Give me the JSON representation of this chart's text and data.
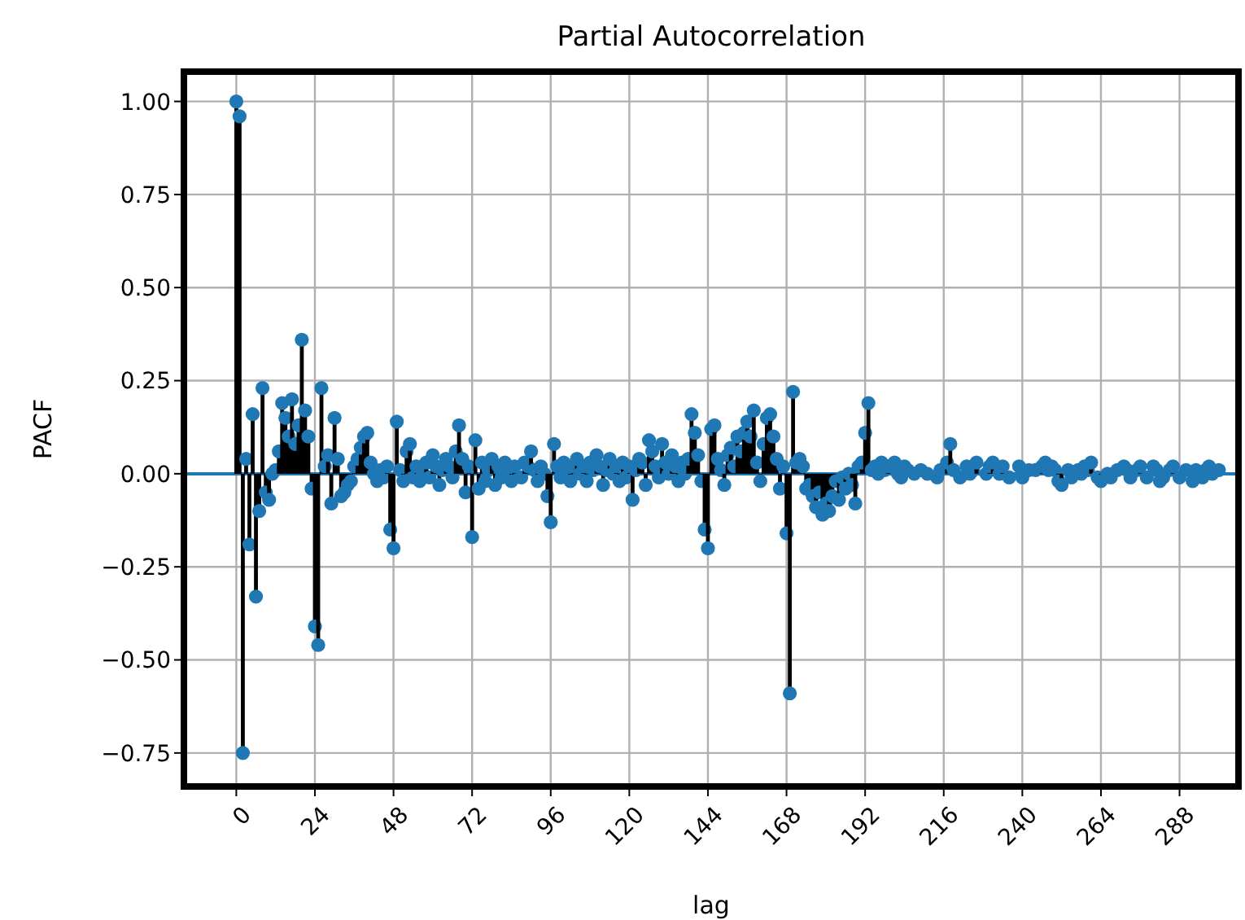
{
  "chart_data": {
    "type": "lollipop",
    "title": "Partial Autocorrelation",
    "xlabel": "lag",
    "ylabel": "PACF",
    "x": [
      0,
      1,
      2,
      3,
      4,
      5,
      6,
      7,
      8,
      9,
      10,
      11,
      12,
      13,
      14,
      15,
      16,
      17,
      18,
      19,
      20,
      21,
      22,
      23,
      24,
      25,
      26,
      27,
      28,
      29,
      30,
      31,
      32,
      33,
      34,
      35,
      36,
      37,
      38,
      39,
      40,
      41,
      42,
      43,
      44,
      45,
      46,
      47,
      48,
      49,
      50,
      51,
      52,
      53,
      54,
      55,
      56,
      57,
      58,
      59,
      60,
      61,
      62,
      63,
      64,
      65,
      66,
      67,
      68,
      69,
      70,
      71,
      72,
      73,
      74,
      75,
      76,
      77,
      78,
      79,
      80,
      81,
      82,
      83,
      84,
      85,
      86,
      87,
      88,
      89,
      90,
      91,
      92,
      93,
      94,
      95,
      96,
      97,
      98,
      99,
      100,
      101,
      102,
      103,
      104,
      105,
      106,
      107,
      108,
      109,
      110,
      111,
      112,
      113,
      114,
      115,
      116,
      117,
      118,
      119,
      120,
      121,
      122,
      123,
      124,
      125,
      126,
      127,
      128,
      129,
      130,
      131,
      132,
      133,
      134,
      135,
      136,
      137,
      138,
      139,
      140,
      141,
      142,
      143,
      144,
      145,
      146,
      147,
      148,
      149,
      150,
      151,
      152,
      153,
      154,
      155,
      156,
      157,
      158,
      159,
      160,
      161,
      162,
      163,
      164,
      165,
      166,
      167,
      168,
      169,
      170,
      171,
      172,
      173,
      174,
      175,
      176,
      177,
      178,
      179,
      180,
      181,
      182,
      183,
      184,
      185,
      186,
      187,
      188,
      189,
      190,
      191,
      192,
      193,
      194,
      195,
      196,
      197,
      198,
      199,
      200,
      201,
      202,
      203,
      204,
      205,
      206,
      207,
      208,
      209,
      210,
      211,
      212,
      213,
      214,
      215,
      216,
      217,
      218,
      219,
      220,
      221,
      222,
      223,
      224,
      225,
      226,
      227,
      228,
      229,
      230,
      231,
      232,
      233,
      234,
      235,
      236,
      237,
      238,
      239,
      240,
      241,
      242,
      243,
      244,
      245,
      246,
      247,
      248,
      249,
      250,
      251,
      252,
      253,
      254,
      255,
      256,
      257,
      258,
      259,
      260,
      261,
      262,
      263,
      264,
      265,
      266,
      267,
      268,
      269,
      270,
      271,
      272,
      273,
      274,
      275,
      276,
      277,
      278,
      279,
      280,
      281,
      282,
      283,
      284,
      285,
      286,
      287,
      288,
      289,
      290,
      291,
      292,
      293,
      294,
      295,
      296,
      297,
      298,
      299,
      300
    ],
    "values": [
      1.0,
      0.96,
      -0.75,
      0.04,
      -0.19,
      0.16,
      -0.33,
      -0.1,
      0.23,
      -0.05,
      -0.07,
      0.0,
      0.01,
      0.06,
      0.19,
      0.15,
      0.1,
      0.2,
      0.08,
      0.13,
      0.36,
      0.17,
      0.1,
      -0.04,
      -0.41,
      -0.46,
      0.23,
      0.02,
      0.05,
      -0.08,
      0.15,
      0.04,
      -0.06,
      -0.05,
      -0.03,
      -0.02,
      0.02,
      0.04,
      0.07,
      0.1,
      0.11,
      0.03,
      0.0,
      -0.02,
      0.01,
      -0.01,
      0.02,
      -0.15,
      -0.2,
      0.14,
      0.01,
      -0.02,
      0.06,
      0.08,
      -0.01,
      0.02,
      -0.02,
      0.0,
      0.03,
      -0.01,
      0.05,
      0.02,
      -0.03,
      0.01,
      0.04,
      0.02,
      -0.01,
      0.06,
      0.13,
      0.04,
      -0.05,
      0.02,
      -0.17,
      0.09,
      -0.04,
      0.03,
      -0.02,
      0.01,
      0.04,
      -0.03,
      0.02,
      -0.01,
      0.03,
      0.0,
      -0.02,
      0.02,
      null,
      -0.01,
      0.03,
      0.02,
      0.06,
      0.01,
      -0.02,
      0.02,
      0.0,
      -0.06,
      -0.13,
      0.08,
      0.02,
      -0.01,
      0.03,
      0.01,
      -0.02,
      0.02,
      0.04,
      0.0,
      0.02,
      -0.02,
      0.03,
      0.01,
      0.05,
      0.02,
      -0.03,
      0.01,
      0.04,
      0.0,
      0.02,
      -0.02,
      0.03,
      -0.01,
      0.02,
      -0.07,
      0.01,
      0.04,
      0.03,
      -0.03,
      0.09,
      0.06,
      0.02,
      -0.01,
      0.08,
      0.03,
      0.0,
      0.05,
      0.02,
      -0.02,
      0.03,
      0.0,
      0.04,
      0.16,
      0.11,
      0.05,
      -0.02,
      -0.15,
      -0.2,
      0.12,
      0.13,
      0.04,
      0.01,
      -0.03,
      0.05,
      0.07,
      0.02,
      0.1,
      0.06,
      0.11,
      0.14,
      0.1,
      0.17,
      0.03,
      -0.02,
      0.08,
      0.15,
      0.16,
      0.1,
      0.04,
      -0.04,
      0.02,
      -0.16,
      -0.59,
      0.22,
      0.03,
      0.04,
      0.02,
      -0.04,
      -0.03,
      -0.06,
      -0.09,
      -0.05,
      -0.11,
      -0.08,
      -0.1,
      -0.06,
      -0.02,
      -0.07,
      -0.01,
      -0.04,
      0.0,
      -0.03,
      -0.08,
      0.02,
      0.03,
      0.11,
      0.19,
      0.01,
      0.02,
      0.0,
      0.03,
      0.01,
      0.02,
      null,
      0.03,
      0.0,
      -0.01,
      0.02,
      0.01,
      null,
      0.0,
      null,
      0.01,
      null,
      0.0,
      null,
      null,
      -0.01,
      0.01,
      null,
      0.03,
      0.08,
      0.01,
      null,
      -0.01,
      null,
      0.02,
      0.0,
      0.01,
      0.03,
      null,
      null,
      0.0,
      0.02,
      0.03,
      null,
      0.0,
      0.02,
      null,
      -0.01,
      null,
      null,
      0.02,
      -0.01,
      null,
      0.01,
      null,
      0.01,
      null,
      0.02,
      0.03,
      0.01,
      0.02,
      0.01,
      -0.02,
      -0.03,
      null,
      0.01,
      -0.01,
      null,
      0.01,
      0.0,
      0.02,
      0.01,
      0.03,
      null,
      -0.01,
      -0.02,
      null,
      0.0,
      -0.01,
      null,
      0.01,
      null,
      0.02,
      0.01,
      -0.01,
      null,
      0.01,
      0.02,
      null,
      -0.01,
      null,
      0.02,
      0.01,
      -0.02,
      -0.01,
      null,
      0.01,
      0.02,
      null,
      -0.01,
      null,
      0.01,
      null,
      -0.02,
      0.01,
      null,
      -0.01,
      0.01,
      0.02,
      0.0,
      null,
      0.01
    ],
    "color": "#1f77b4",
    "marker": "circle",
    "grid": true,
    "xlim": [
      -16,
      306
    ],
    "xticks": [
      0,
      24,
      48,
      72,
      96,
      120,
      144,
      168,
      192,
      216,
      240,
      264,
      288
    ],
    "ylim": [
      -0.84,
      1.08
    ],
    "yticks": [
      {
        "value": -0.75,
        "label": "−0.75"
      },
      {
        "value": -0.5,
        "label": "−0.50"
      },
      {
        "value": -0.25,
        "label": "−0.25"
      },
      {
        "value": 0,
        "label": "0.00"
      },
      {
        "value": 0.25,
        "label": "0.25"
      },
      {
        "value": 0.5,
        "label": "0.50"
      },
      {
        "value": 0.75,
        "label": "0.75"
      },
      {
        "value": 1,
        "label": "1.00"
      }
    ],
    "ref_lines": [
      {
        "axis": "y",
        "value": 0,
        "color": "#1f77b4"
      }
    ]
  }
}
